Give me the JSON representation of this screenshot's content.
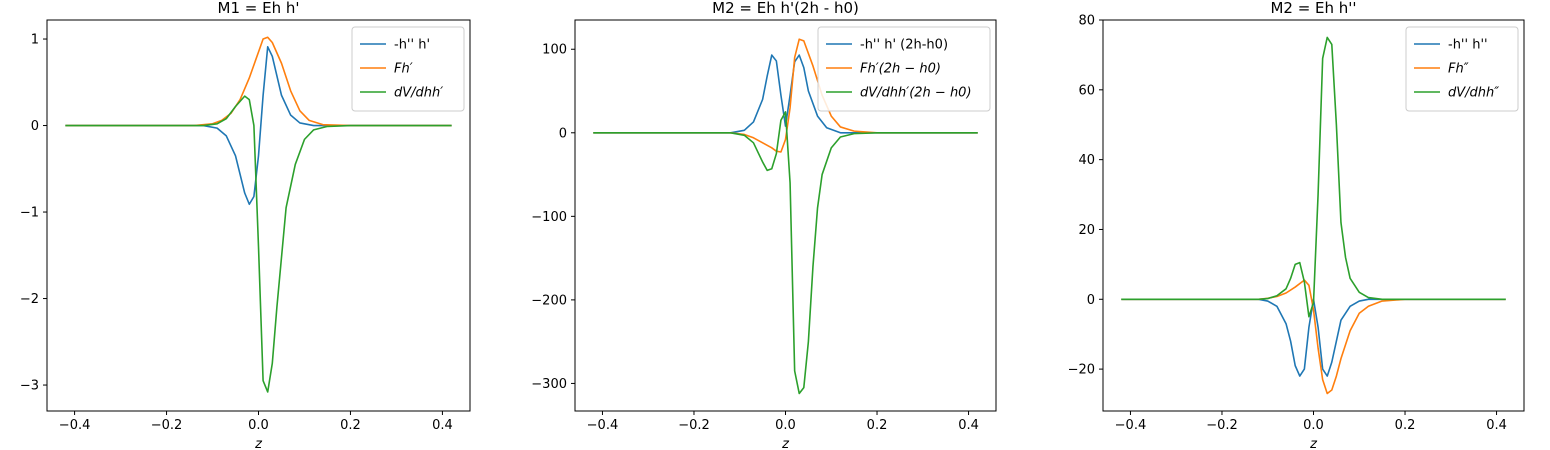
{
  "figure": {
    "background": "#ffffff"
  },
  "chart_data": [
    {
      "type": "line",
      "title": "M1 = Eh h'",
      "xlabel": "z",
      "ylabel": "",
      "xlim": [
        -0.46,
        0.46
      ],
      "ylim": [
        -3.3,
        1.22
      ],
      "xticks": [
        -0.4,
        -0.2,
        0.0,
        0.2,
        0.4
      ],
      "xtick_labels": [
        "−0.4",
        "−0.2",
        "0.0",
        "0.2",
        "0.4"
      ],
      "yticks": [
        -3,
        -2,
        -1,
        0,
        1
      ],
      "ytick_labels": [
        "−3",
        "−2",
        "−1",
        "0",
        "1"
      ],
      "legend": "top-right",
      "grid": false,
      "series": [
        {
          "name": "-h'' h'",
          "color": "#1f77b4",
          "points": [
            [
              -0.42,
              0
            ],
            [
              -0.12,
              0
            ],
            [
              -0.09,
              -0.03
            ],
            [
              -0.07,
              -0.12
            ],
            [
              -0.05,
              -0.35
            ],
            [
              -0.03,
              -0.78
            ],
            [
              -0.02,
              -0.91
            ],
            [
              -0.01,
              -0.82
            ],
            [
              0.0,
              -0.35
            ],
            [
              0.01,
              0.35
            ],
            [
              0.02,
              0.91
            ],
            [
              0.03,
              0.8
            ],
            [
              0.05,
              0.35
            ],
            [
              0.07,
              0.12
            ],
            [
              0.09,
              0.03
            ],
            [
              0.12,
              0
            ],
            [
              0.42,
              0
            ]
          ]
        },
        {
          "name": "Fh′",
          "color": "#ff7f0e",
          "points": [
            [
              -0.42,
              0
            ],
            [
              -0.14,
              0
            ],
            [
              -0.1,
              0.02
            ],
            [
              -0.08,
              0.06
            ],
            [
              -0.06,
              0.14
            ],
            [
              -0.04,
              0.3
            ],
            [
              -0.02,
              0.55
            ],
            [
              0.0,
              0.85
            ],
            [
              0.01,
              1.0
            ],
            [
              0.02,
              1.02
            ],
            [
              0.03,
              0.96
            ],
            [
              0.05,
              0.72
            ],
            [
              0.07,
              0.4
            ],
            [
              0.09,
              0.17
            ],
            [
              0.11,
              0.06
            ],
            [
              0.14,
              0.01
            ],
            [
              0.2,
              0
            ],
            [
              0.42,
              0
            ]
          ]
        },
        {
          "name": "dV/dhh′",
          "color": "#2ca02c",
          "points": [
            [
              -0.42,
              0
            ],
            [
              -0.12,
              0
            ],
            [
              -0.09,
              0.02
            ],
            [
              -0.07,
              0.08
            ],
            [
              -0.05,
              0.22
            ],
            [
              -0.03,
              0.34
            ],
            [
              -0.02,
              0.3
            ],
            [
              -0.01,
              0.0
            ],
            [
              0.0,
              -1.4
            ],
            [
              0.01,
              -2.95
            ],
            [
              0.02,
              -3.08
            ],
            [
              0.03,
              -2.75
            ],
            [
              0.04,
              -2.1
            ],
            [
              0.06,
              -0.95
            ],
            [
              0.08,
              -0.45
            ],
            [
              0.1,
              -0.16
            ],
            [
              0.12,
              -0.05
            ],
            [
              0.15,
              -0.01
            ],
            [
              0.2,
              0
            ],
            [
              0.42,
              0
            ]
          ]
        }
      ]
    },
    {
      "type": "line",
      "title": "M2 = Eh h'(2h - h0)",
      "xlabel": "z",
      "ylabel": "",
      "xlim": [
        -0.46,
        0.46
      ],
      "ylim": [
        -333,
        135
      ],
      "xticks": [
        -0.4,
        -0.2,
        0.0,
        0.2,
        0.4
      ],
      "xtick_labels": [
        "−0.4",
        "−0.2",
        "0.0",
        "0.2",
        "0.4"
      ],
      "yticks": [
        -300,
        -200,
        -100,
        0,
        100
      ],
      "ytick_labels": [
        "−300",
        "−200",
        "−100",
        "0",
        "100"
      ],
      "legend": "top-right",
      "grid": false,
      "series": [
        {
          "name": "-h'' h' (2h-h0)",
          "color": "#1f77b4",
          "points": [
            [
              -0.42,
              0
            ],
            [
              -0.12,
              0
            ],
            [
              -0.09,
              3
            ],
            [
              -0.07,
              13
            ],
            [
              -0.05,
              40
            ],
            [
              -0.04,
              68
            ],
            [
              -0.03,
              93
            ],
            [
              -0.02,
              86
            ],
            [
              -0.01,
              45
            ],
            [
              0.0,
              8
            ],
            [
              0.01,
              45
            ],
            [
              0.02,
              85
            ],
            [
              0.03,
              93
            ],
            [
              0.04,
              78
            ],
            [
              0.05,
              50
            ],
            [
              0.07,
              20
            ],
            [
              0.09,
              6
            ],
            [
              0.12,
              0
            ],
            [
              0.42,
              0
            ]
          ]
        },
        {
          "name": "Fh′(2h − h0)",
          "color": "#ff7f0e",
          "points": [
            [
              -0.42,
              0
            ],
            [
              -0.12,
              0
            ],
            [
              -0.09,
              -2
            ],
            [
              -0.07,
              -6
            ],
            [
              -0.05,
              -12
            ],
            [
              -0.03,
              -18
            ],
            [
              -0.02,
              -22
            ],
            [
              -0.01,
              -23
            ],
            [
              0.0,
              -8
            ],
            [
              0.01,
              30
            ],
            [
              0.02,
              90
            ],
            [
              0.03,
              112
            ],
            [
              0.04,
              110
            ],
            [
              0.06,
              80
            ],
            [
              0.08,
              45
            ],
            [
              0.1,
              20
            ],
            [
              0.12,
              7
            ],
            [
              0.15,
              2
            ],
            [
              0.2,
              0
            ],
            [
              0.42,
              0
            ]
          ]
        },
        {
          "name": "dV/dhh′(2h − h0)",
          "color": "#2ca02c",
          "points": [
            [
              -0.42,
              0
            ],
            [
              -0.12,
              0
            ],
            [
              -0.09,
              -3
            ],
            [
              -0.07,
              -12
            ],
            [
              -0.05,
              -35
            ],
            [
              -0.04,
              -45
            ],
            [
              -0.03,
              -43
            ],
            [
              -0.02,
              -25
            ],
            [
              -0.01,
              15
            ],
            [
              0.0,
              25
            ],
            [
              0.01,
              -60
            ],
            [
              0.02,
              -285
            ],
            [
              0.03,
              -312
            ],
            [
              0.04,
              -305
            ],
            [
              0.05,
              -250
            ],
            [
              0.06,
              -160
            ],
            [
              0.07,
              -90
            ],
            [
              0.08,
              -50
            ],
            [
              0.1,
              -18
            ],
            [
              0.12,
              -5
            ],
            [
              0.15,
              -1
            ],
            [
              0.2,
              0
            ],
            [
              0.42,
              0
            ]
          ]
        }
      ]
    },
    {
      "type": "line",
      "title": "M2 = Eh h''",
      "xlabel": "z",
      "ylabel": "",
      "xlim": [
        -0.46,
        0.46
      ],
      "ylim": [
        -32,
        80
      ],
      "xticks": [
        -0.4,
        -0.2,
        0.0,
        0.2,
        0.4
      ],
      "xtick_labels": [
        "−0.4",
        "−0.2",
        "0.0",
        "0.2",
        "0.4"
      ],
      "yticks": [
        -20,
        0,
        20,
        40,
        60,
        80
      ],
      "ytick_labels": [
        "−20",
        "0",
        "20",
        "40",
        "60",
        "80"
      ],
      "legend": "top-right",
      "grid": false,
      "series": [
        {
          "name": "-h'' h''",
          "color": "#1f77b4",
          "points": [
            [
              -0.42,
              0
            ],
            [
              -0.12,
              0
            ],
            [
              -0.1,
              -0.5
            ],
            [
              -0.08,
              -2
            ],
            [
              -0.06,
              -7
            ],
            [
              -0.05,
              -12
            ],
            [
              -0.04,
              -19
            ],
            [
              -0.03,
              -22
            ],
            [
              -0.02,
              -20
            ],
            [
              -0.01,
              -8
            ],
            [
              0.0,
              0
            ],
            [
              0.01,
              -8
            ],
            [
              0.02,
              -20
            ],
            [
              0.03,
              -22
            ],
            [
              0.04,
              -18
            ],
            [
              0.05,
              -12
            ],
            [
              0.06,
              -6
            ],
            [
              0.08,
              -2
            ],
            [
              0.1,
              -0.5
            ],
            [
              0.12,
              0
            ],
            [
              0.42,
              0
            ]
          ]
        },
        {
          "name": "Fh″",
          "color": "#ff7f0e",
          "points": [
            [
              -0.42,
              0
            ],
            [
              -0.12,
              0
            ],
            [
              -0.1,
              0.3
            ],
            [
              -0.08,
              0.8
            ],
            [
              -0.06,
              1.8
            ],
            [
              -0.04,
              3.5
            ],
            [
              -0.02,
              5.5
            ],
            [
              -0.01,
              4
            ],
            [
              0.0,
              -3
            ],
            [
              0.01,
              -14
            ],
            [
              0.02,
              -23
            ],
            [
              0.03,
              -27
            ],
            [
              0.04,
              -26
            ],
            [
              0.05,
              -22
            ],
            [
              0.06,
              -17
            ],
            [
              0.08,
              -9
            ],
            [
              0.1,
              -4
            ],
            [
              0.12,
              -2
            ],
            [
              0.15,
              -0.5
            ],
            [
              0.2,
              0
            ],
            [
              0.42,
              0
            ]
          ]
        },
        {
          "name": "dV/dhh″",
          "color": "#2ca02c",
          "points": [
            [
              -0.42,
              0
            ],
            [
              -0.12,
              0
            ],
            [
              -0.1,
              0.2
            ],
            [
              -0.08,
              1
            ],
            [
              -0.06,
              3
            ],
            [
              -0.05,
              6
            ],
            [
              -0.04,
              10
            ],
            [
              -0.03,
              10.5
            ],
            [
              -0.02,
              5
            ],
            [
              -0.01,
              -5
            ],
            [
              0.0,
              -1
            ],
            [
              0.01,
              30
            ],
            [
              0.02,
              69
            ],
            [
              0.03,
              75
            ],
            [
              0.04,
              73
            ],
            [
              0.05,
              50
            ],
            [
              0.06,
              22
            ],
            [
              0.07,
              12
            ],
            [
              0.08,
              6
            ],
            [
              0.1,
              2
            ],
            [
              0.12,
              0.5
            ],
            [
              0.15,
              0
            ],
            [
              0.42,
              0
            ]
          ]
        }
      ]
    }
  ]
}
